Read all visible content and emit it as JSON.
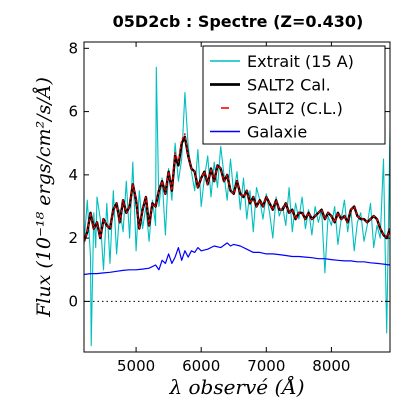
{
  "chart_data": {
    "type": "line",
    "title": "05D2cb : Spectre (Z=0.430)",
    "xlabel": "λ observé (Å)",
    "ylabel": "Flux (10⁻¹⁸ ergs/cm²/s/Å)",
    "xlim": [
      4200,
      8900
    ],
    "ylim": [
      -1.6,
      8.2
    ],
    "x_ticks": [
      5000,
      6000,
      7000,
      8000
    ],
    "y_ticks": [
      0,
      2,
      4,
      6,
      8
    ],
    "zero_line": 0,
    "legend_location": "upper right",
    "series": [
      {
        "name": "Extrait (15 A)",
        "color": "#00bfbf",
        "style": "solid",
        "x": [
          4200,
          4250,
          4300,
          4310,
          4350,
          4380,
          4400,
          4450,
          4500,
          4550,
          4600,
          4650,
          4700,
          4750,
          4800,
          4850,
          4900,
          4950,
          5000,
          5050,
          5100,
          5150,
          5200,
          5250,
          5300,
          5310,
          5350,
          5400,
          5450,
          5500,
          5550,
          5600,
          5650,
          5700,
          5750,
          5800,
          5850,
          5900,
          5950,
          6000,
          6050,
          6100,
          6150,
          6200,
          6250,
          6300,
          6350,
          6400,
          6450,
          6500,
          6550,
          6600,
          6650,
          6700,
          6750,
          6800,
          6850,
          6900,
          6950,
          7000,
          7050,
          7100,
          7150,
          7200,
          7250,
          7300,
          7350,
          7400,
          7450,
          7500,
          7550,
          7600,
          7650,
          7700,
          7750,
          7800,
          7850,
          7900,
          7950,
          8000,
          8050,
          8100,
          8150,
          8200,
          8250,
          8300,
          8350,
          8400,
          8450,
          8500,
          8550,
          8600,
          8650,
          8700,
          8750,
          8800,
          8850,
          8900
        ],
        "y": [
          1.8,
          3.2,
          1.4,
          -1.4,
          2.8,
          1.7,
          3.3,
          2.6,
          1.0,
          3.1,
          1.2,
          3.5,
          1.5,
          2.9,
          2.2,
          3.8,
          2.0,
          4.4,
          1.6,
          3.5,
          2.3,
          3.0,
          1.9,
          3.2,
          2.4,
          7.4,
          3.0,
          3.9,
          2.1,
          4.2,
          3.2,
          5.0,
          3.8,
          4.5,
          6.6,
          4.9,
          4.1,
          3.5,
          4.8,
          3.0,
          3.9,
          4.6,
          3.3,
          4.4,
          3.6,
          4.9,
          4.0,
          3.2,
          4.5,
          3.4,
          4.1,
          2.9,
          3.9,
          2.6,
          3.5,
          2.2,
          3.6,
          3.2,
          2.6,
          3.4,
          2.8,
          2.0,
          3.3,
          2.7,
          3.0,
          2.4,
          3.6,
          2.2,
          3.1,
          2.6,
          3.3,
          2.3,
          2.9,
          2.1,
          3.0,
          2.5,
          2.9,
          0.9,
          2.7,
          2.4,
          3.0,
          1.8,
          2.6,
          3.2,
          2.2,
          2.9,
          1.6,
          2.5,
          2.8,
          1.9,
          2.4,
          3.1,
          1.7,
          2.4,
          2.0,
          4.5,
          -1.0,
          5.4
        ]
      },
      {
        "name": "SALT2 Cal.",
        "color": "#000000",
        "style": "solid",
        "x": [
          4200,
          4250,
          4300,
          4350,
          4400,
          4450,
          4500,
          4550,
          4600,
          4650,
          4700,
          4750,
          4800,
          4850,
          4900,
          4950,
          5000,
          5050,
          5100,
          5150,
          5200,
          5250,
          5300,
          5350,
          5400,
          5450,
          5500,
          5550,
          5600,
          5650,
          5700,
          5750,
          5800,
          5850,
          5900,
          5950,
          6000,
          6050,
          6100,
          6150,
          6200,
          6250,
          6300,
          6350,
          6400,
          6450,
          6500,
          6550,
          6600,
          6650,
          6700,
          6750,
          6800,
          6850,
          6900,
          6950,
          7000,
          7050,
          7100,
          7150,
          7200,
          7250,
          7300,
          7350,
          7400,
          7450,
          7500,
          7550,
          7600,
          7650,
          7700,
          7750,
          7800,
          7850,
          7900,
          7950,
          8000,
          8050,
          8100,
          8150,
          8200,
          8250,
          8300,
          8350,
          8400,
          8450,
          8500,
          8550,
          8600,
          8650,
          8700,
          8750,
          8800,
          8850,
          8900
        ],
        "y": [
          1.9,
          2.2,
          2.8,
          2.3,
          2.5,
          2.0,
          2.6,
          2.4,
          2.3,
          2.9,
          3.1,
          2.5,
          3.2,
          2.8,
          3.0,
          3.7,
          3.2,
          2.3,
          2.9,
          3.3,
          2.4,
          3.1,
          3.0,
          3.5,
          3.8,
          3.4,
          4.1,
          3.5,
          4.6,
          4.3,
          5.0,
          5.2,
          4.6,
          4.2,
          4.1,
          3.6,
          3.9,
          4.1,
          3.7,
          4.2,
          3.8,
          4.3,
          4.2,
          3.8,
          4.0,
          3.5,
          3.4,
          3.8,
          3.4,
          3.3,
          3.5,
          3.1,
          3.3,
          3.0,
          3.2,
          3.0,
          3.3,
          3.1,
          2.9,
          3.2,
          2.9,
          2.9,
          3.1,
          2.8,
          2.9,
          2.6,
          2.8,
          2.8,
          2.6,
          2.8,
          2.6,
          2.7,
          2.8,
          2.9,
          2.6,
          2.8,
          2.7,
          2.5,
          2.8,
          2.6,
          2.7,
          2.5,
          2.9,
          3.0,
          2.7,
          2.6,
          2.6,
          2.5,
          2.6,
          2.7,
          2.6,
          2.3,
          2.1,
          2.0,
          2.3
        ]
      },
      {
        "name": "SALT2 (C.L.)",
        "color": "#ff0000",
        "style": "dashed",
        "x": [
          4200,
          4250,
          4300,
          4350,
          4400,
          4450,
          4500,
          4550,
          4600,
          4650,
          4700,
          4750,
          4800,
          4850,
          4900,
          4950,
          5000,
          5050,
          5100,
          5150,
          5200,
          5250,
          5300,
          5350,
          5400,
          5450,
          5500,
          5550,
          5600,
          5650,
          5700,
          5750,
          5800,
          5850,
          5900,
          5950,
          6000,
          6050,
          6100,
          6150,
          6200,
          6250,
          6300,
          6350,
          6400,
          6450,
          6500,
          6550,
          6600,
          6650,
          6700,
          6750,
          6800,
          6850,
          6900,
          6950,
          7000,
          7050,
          7100,
          7150,
          7200,
          7250,
          7300,
          7350,
          7400,
          7450,
          7500,
          7550,
          7600,
          7650,
          7700,
          7750,
          7800,
          7850,
          7900,
          7950,
          8000,
          8050,
          8100,
          8150,
          8200,
          8250,
          8300,
          8350,
          8400,
          8450,
          8500,
          8550,
          8600,
          8650,
          8700,
          8750,
          8800,
          8850,
          8900
        ],
        "y": [
          1.9,
          2.2,
          2.8,
          2.3,
          2.5,
          2.0,
          2.6,
          2.4,
          2.3,
          2.9,
          3.1,
          2.5,
          3.2,
          2.8,
          3.0,
          3.7,
          3.2,
          2.3,
          2.9,
          3.3,
          2.4,
          3.1,
          3.0,
          3.5,
          3.8,
          3.4,
          4.1,
          3.5,
          4.7,
          4.4,
          5.1,
          5.3,
          4.6,
          4.2,
          4.1,
          3.6,
          3.9,
          4.1,
          3.7,
          4.2,
          3.8,
          4.3,
          4.2,
          3.8,
          4.0,
          3.5,
          3.4,
          3.8,
          3.4,
          3.3,
          3.5,
          3.1,
          3.3,
          3.0,
          3.2,
          3.0,
          3.3,
          3.1,
          2.9,
          3.2,
          2.9,
          2.9,
          3.1,
          2.8,
          2.9,
          2.6,
          2.8,
          2.8,
          2.6,
          2.8,
          2.6,
          2.7,
          2.8,
          2.9,
          2.6,
          2.8,
          2.7,
          2.5,
          2.8,
          2.6,
          2.7,
          2.5,
          2.9,
          3.0,
          2.7,
          2.6,
          2.6,
          2.5,
          2.6,
          2.7,
          2.6,
          2.3,
          2.1,
          2.0,
          2.3
        ]
      },
      {
        "name": "Galaxie",
        "color": "#0000ff",
        "style": "solid",
        "x": [
          4200,
          4300,
          4400,
          4500,
          4600,
          4700,
          4800,
          4900,
          5000,
          5100,
          5200,
          5300,
          5350,
          5400,
          5450,
          5500,
          5550,
          5600,
          5650,
          5700,
          5750,
          5800,
          5850,
          5900,
          5950,
          6000,
          6100,
          6200,
          6300,
          6400,
          6450,
          6500,
          6600,
          6700,
          6800,
          6900,
          7000,
          7100,
          7200,
          7300,
          7400,
          7500,
          7600,
          7700,
          7800,
          7900,
          8000,
          8100,
          8200,
          8300,
          8400,
          8500,
          8600,
          8700,
          8800,
          8900
        ],
        "y": [
          0.85,
          0.88,
          0.88,
          0.9,
          0.92,
          0.95,
          0.98,
          1.0,
          1.0,
          1.02,
          1.05,
          1.15,
          1.0,
          1.3,
          1.2,
          1.5,
          1.2,
          1.4,
          1.7,
          1.3,
          1.6,
          1.4,
          1.6,
          1.55,
          1.7,
          1.6,
          1.65,
          1.75,
          1.7,
          1.85,
          1.75,
          1.8,
          1.75,
          1.65,
          1.55,
          1.55,
          1.5,
          1.5,
          1.48,
          1.45,
          1.42,
          1.42,
          1.4,
          1.38,
          1.35,
          1.35,
          1.32,
          1.3,
          1.28,
          1.28,
          1.25,
          1.25,
          1.22,
          1.2,
          1.18,
          1.15
        ]
      }
    ]
  }
}
